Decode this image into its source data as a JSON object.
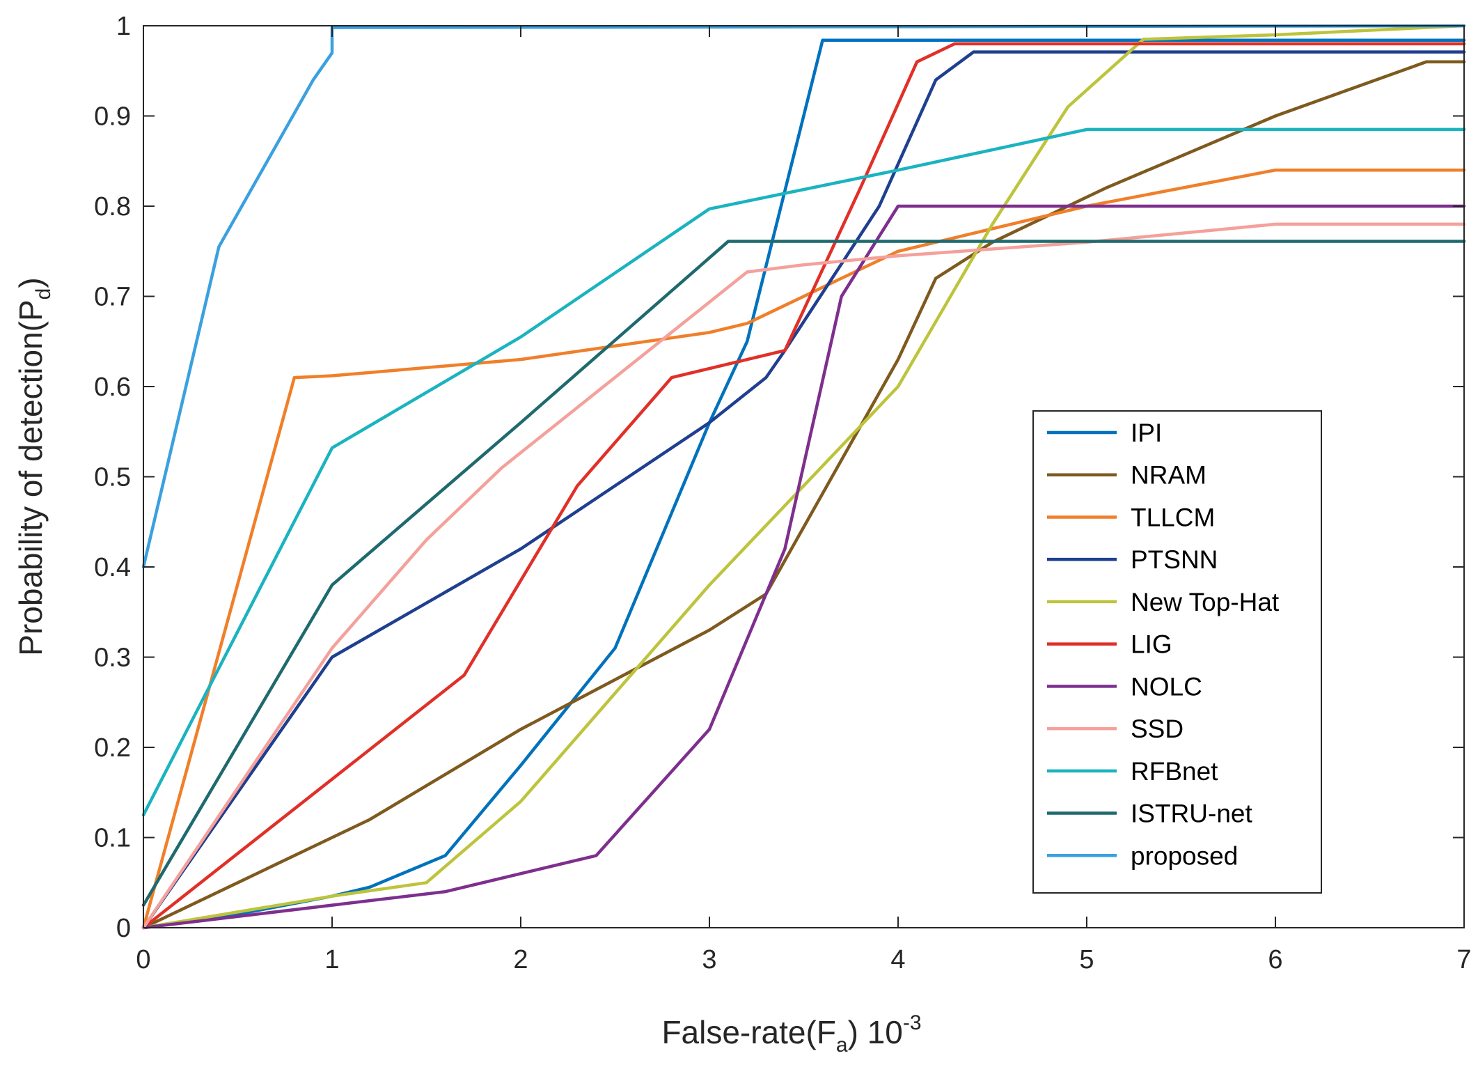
{
  "chart_data": {
    "type": "line",
    "title": "",
    "xlabel": {
      "main": "False-rate(F",
      "sub": "a",
      "tail": ") 10",
      "sup": "-3"
    },
    "ylabel": {
      "main": "Probability of detection(P",
      "sub": "d",
      "tail": ")"
    },
    "xlim": [
      0,
      7
    ],
    "ylim": [
      0,
      1
    ],
    "xticks": [
      0,
      1,
      2,
      3,
      4,
      5,
      6,
      7
    ],
    "xtick_labels": [
      "0",
      "1",
      "2",
      "3",
      "4",
      "5",
      "6",
      "7"
    ],
    "yticks": [
      0,
      0.1,
      0.2,
      0.3,
      0.4,
      0.5,
      0.6,
      0.7,
      0.8,
      0.9,
      1
    ],
    "ytick_labels": [
      "0",
      "0.1",
      "0.2",
      "0.3",
      "0.4",
      "0.5",
      "0.6",
      "0.7",
      "0.8",
      "0.9",
      "1"
    ],
    "grid": false,
    "legend_position": "right, lower-middle",
    "series": [
      {
        "name": "IPI",
        "color": "#0072BD",
        "points": [
          [
            0,
            0
          ],
          [
            0.5,
            0.015
          ],
          [
            1,
            0.035
          ],
          [
            1.2,
            0.045
          ],
          [
            1.6,
            0.08
          ],
          [
            2,
            0.18
          ],
          [
            2.5,
            0.31
          ],
          [
            3,
            0.56
          ],
          [
            3.2,
            0.65
          ],
          [
            3.6,
            0.984
          ],
          [
            7,
            0.984
          ]
        ]
      },
      {
        "name": "NRAM",
        "color": "#7E5A1E",
        "points": [
          [
            0,
            0
          ],
          [
            0.5,
            0.05
          ],
          [
            1,
            0.1
          ],
          [
            1.2,
            0.12
          ],
          [
            2,
            0.22
          ],
          [
            3,
            0.33
          ],
          [
            3.3,
            0.37
          ],
          [
            4,
            0.63
          ],
          [
            4.2,
            0.72
          ],
          [
            4.5,
            0.76
          ],
          [
            5,
            0.81
          ],
          [
            5.1,
            0.82
          ],
          [
            6,
            0.9
          ],
          [
            6.8,
            0.96
          ],
          [
            7,
            0.96
          ]
        ]
      },
      {
        "name": "TLLCM",
        "color": "#F07F2A",
        "points": [
          [
            0,
            0
          ],
          [
            0.8,
            0.61
          ],
          [
            1,
            0.612
          ],
          [
            2,
            0.63
          ],
          [
            3,
            0.66
          ],
          [
            3.2,
            0.67
          ],
          [
            3.8,
            0.73
          ],
          [
            4,
            0.75
          ],
          [
            5,
            0.8
          ],
          [
            6,
            0.84
          ],
          [
            7,
            0.84
          ]
        ]
      },
      {
        "name": "PTSNN",
        "color": "#1F3F8F",
        "points": [
          [
            0,
            0
          ],
          [
            1,
            0.3
          ],
          [
            2,
            0.42
          ],
          [
            3,
            0.56
          ],
          [
            3.3,
            0.61
          ],
          [
            3.4,
            0.64
          ],
          [
            3.9,
            0.8
          ],
          [
            4.2,
            0.94
          ],
          [
            4.4,
            0.971
          ],
          [
            7,
            0.971
          ]
        ]
      },
      {
        "name": "New Top-Hat",
        "color": "#BDC43C",
        "points": [
          [
            0,
            0
          ],
          [
            1,
            0.035
          ],
          [
            1.5,
            0.05
          ],
          [
            2,
            0.14
          ],
          [
            3,
            0.38
          ],
          [
            4,
            0.6
          ],
          [
            4.5,
            0.78
          ],
          [
            4.9,
            0.91
          ],
          [
            5.3,
            0.985
          ],
          [
            6,
            0.99
          ],
          [
            7,
            1.0
          ]
        ]
      },
      {
        "name": "LIG",
        "color": "#E03028",
        "points": [
          [
            0,
            0
          ],
          [
            1.7,
            0.28
          ],
          [
            2.3,
            0.49
          ],
          [
            2.8,
            0.61
          ],
          [
            3.4,
            0.64
          ],
          [
            3.8,
            0.82
          ],
          [
            4.1,
            0.96
          ],
          [
            4.3,
            0.98
          ],
          [
            7,
            0.98
          ]
        ]
      },
      {
        "name": "NOLC",
        "color": "#7E2F8E",
        "points": [
          [
            0,
            0
          ],
          [
            1,
            0.025
          ],
          [
            1.6,
            0.04
          ],
          [
            2.4,
            0.08
          ],
          [
            3,
            0.22
          ],
          [
            3.4,
            0.42
          ],
          [
            3.7,
            0.7
          ],
          [
            4,
            0.8
          ],
          [
            7,
            0.8
          ]
        ]
      },
      {
        "name": "SSD",
        "color": "#F4A09B",
        "points": [
          [
            0,
            0
          ],
          [
            1,
            0.31
          ],
          [
            1.5,
            0.43
          ],
          [
            1.9,
            0.51
          ],
          [
            3.2,
            0.727
          ],
          [
            3.5,
            0.735
          ],
          [
            4,
            0.745
          ],
          [
            5,
            0.76
          ],
          [
            6,
            0.78
          ],
          [
            7,
            0.78
          ]
        ]
      },
      {
        "name": "RFBnet",
        "color": "#1BB3C0",
        "points": [
          [
            0,
            0.125
          ],
          [
            1,
            0.532
          ],
          [
            2,
            0.655
          ],
          [
            3,
            0.797
          ],
          [
            4,
            0.84
          ],
          [
            5,
            0.885
          ],
          [
            7,
            0.885
          ]
        ]
      },
      {
        "name": "ISTRU-net",
        "color": "#1E6A6E",
        "points": [
          [
            0,
            0.025
          ],
          [
            1,
            0.38
          ],
          [
            2,
            0.56
          ],
          [
            3.1,
            0.761
          ],
          [
            7,
            0.761
          ]
        ]
      },
      {
        "name": "proposed",
        "color": "#3BA0E0",
        "points": [
          [
            0,
            0.4
          ],
          [
            0.4,
            0.755
          ],
          [
            0.9,
            0.94
          ],
          [
            1,
            0.97
          ],
          [
            1,
            0.998
          ],
          [
            7,
            1.0
          ]
        ]
      }
    ]
  }
}
